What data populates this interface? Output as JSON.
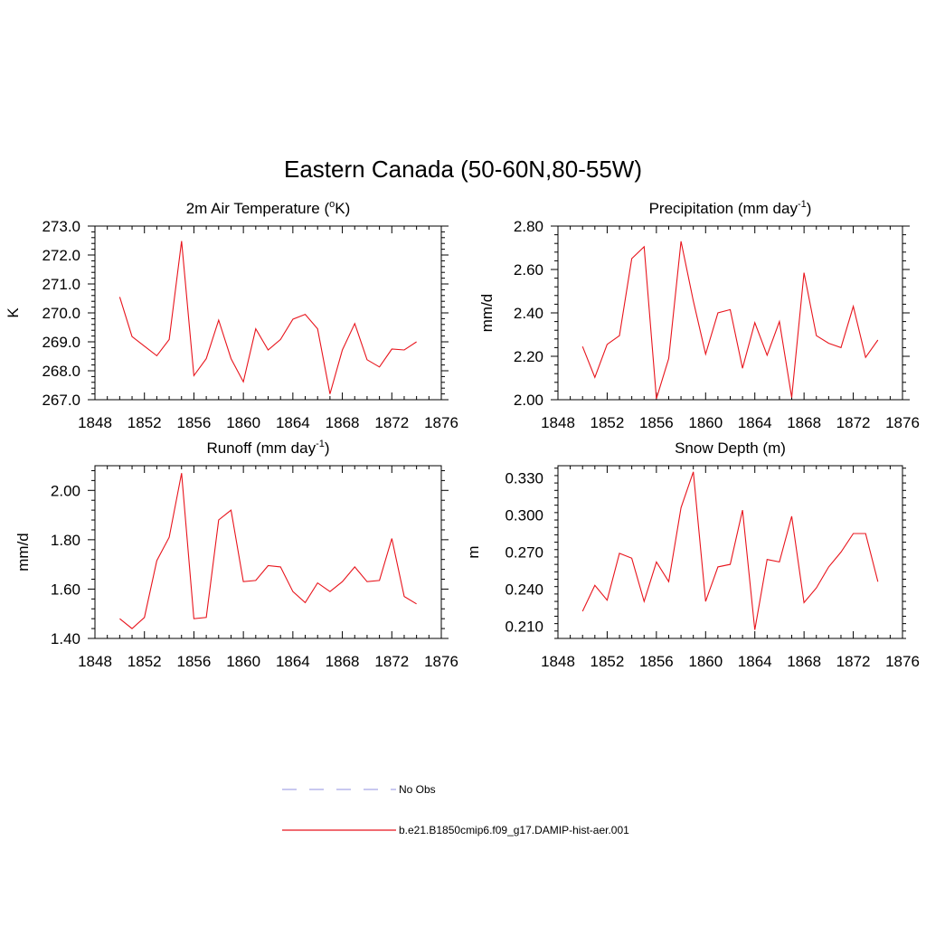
{
  "title": "Eastern Canada (50-60N,80-55W)",
  "colors": {
    "model": "#e8141c",
    "obs": "#a6a6e6",
    "axis": "#000000"
  },
  "legend": {
    "obs_label": "No Obs",
    "model_label": "b.e21.B1850cmip6.f09_g17.DAMIP-hist-aer.001"
  },
  "chart_data": [
    {
      "type": "line",
      "title_main": "2m Air Temperature (",
      "title_sup": "o",
      "title_end": "K)",
      "ylabel": "K",
      "xlim": [
        1848,
        1876
      ],
      "xticks": [
        1848,
        1852,
        1856,
        1860,
        1864,
        1868,
        1872,
        1876
      ],
      "ylim": [
        267.0,
        273.0
      ],
      "yticks": [
        "267.0",
        "268.0",
        "269.0",
        "270.0",
        "271.0",
        "272.0",
        "273.0"
      ],
      "series": [
        {
          "name": "b.e21.B1850cmip6.f09_g17.DAMIP-hist-aer.001",
          "x": [
            1850,
            1851,
            1852,
            1853,
            1854,
            1855,
            1856,
            1857,
            1858,
            1859,
            1860,
            1861,
            1862,
            1863,
            1864,
            1865,
            1866,
            1867,
            1868,
            1869,
            1870,
            1871,
            1872,
            1873,
            1874
          ],
          "y": [
            270.55,
            269.18,
            268.85,
            268.52,
            269.08,
            272.48,
            267.83,
            268.42,
            269.75,
            268.42,
            267.62,
            269.45,
            268.72,
            269.08,
            269.78,
            269.95,
            269.45,
            267.2,
            268.72,
            269.63,
            268.38,
            268.13,
            268.75,
            268.72,
            269.0
          ]
        }
      ]
    },
    {
      "type": "line",
      "title_main": "Precipitation (mm day",
      "title_sup": "-1",
      "title_end": ")",
      "ylabel": "mm/d",
      "xlim": [
        1848,
        1876
      ],
      "xticks": [
        1848,
        1852,
        1856,
        1860,
        1864,
        1868,
        1872,
        1876
      ],
      "ylim": [
        2.0,
        2.8
      ],
      "yticks": [
        "2.00",
        "2.20",
        "2.40",
        "2.60",
        "2.80"
      ],
      "series": [
        {
          "name": "b.e21.B1850cmip6.f09_g17.DAMIP-hist-aer.001",
          "x": [
            1850,
            1851,
            1852,
            1853,
            1854,
            1855,
            1856,
            1857,
            1858,
            1859,
            1860,
            1861,
            1862,
            1863,
            1864,
            1865,
            1866,
            1867,
            1868,
            1869,
            1870,
            1871,
            1872,
            1873,
            1874
          ],
          "y": [
            2.245,
            2.103,
            2.255,
            2.295,
            2.65,
            2.705,
            2.005,
            2.19,
            2.73,
            2.455,
            2.21,
            2.4,
            2.415,
            2.145,
            2.355,
            2.205,
            2.36,
            2.01,
            2.585,
            2.295,
            2.26,
            2.24,
            2.43,
            2.195,
            2.275
          ]
        }
      ]
    },
    {
      "type": "line",
      "title_main": "Runoff (mm day",
      "title_sup": "-1",
      "title_end": ")",
      "ylabel": "mm/d",
      "xlim": [
        1848,
        1876
      ],
      "xticks": [
        1848,
        1852,
        1856,
        1860,
        1864,
        1868,
        1872,
        1876
      ],
      "ylim": [
        1.4,
        2.1
      ],
      "yticks": [
        "1.40",
        "1.60",
        "1.80",
        "2.00"
      ],
      "series": [
        {
          "name": "b.e21.B1850cmip6.f09_g17.DAMIP-hist-aer.001",
          "x": [
            1850,
            1851,
            1852,
            1853,
            1854,
            1855,
            1856,
            1857,
            1858,
            1859,
            1860,
            1861,
            1862,
            1863,
            1864,
            1865,
            1866,
            1867,
            1868,
            1869,
            1870,
            1871,
            1872,
            1873,
            1874
          ],
          "y": [
            1.48,
            1.44,
            1.485,
            1.715,
            1.81,
            2.07,
            1.48,
            1.485,
            1.88,
            1.92,
            1.63,
            1.635,
            1.695,
            1.69,
            1.59,
            1.545,
            1.625,
            1.59,
            1.63,
            1.69,
            1.63,
            1.635,
            1.805,
            1.57,
            1.54
          ]
        }
      ]
    },
    {
      "type": "line",
      "title_main": "Snow Depth (m)",
      "title_sup": "",
      "title_end": "",
      "ylabel": "m",
      "xlim": [
        1848,
        1876
      ],
      "xticks": [
        1848,
        1852,
        1856,
        1860,
        1864,
        1868,
        1872,
        1876
      ],
      "ylim": [
        0.2,
        0.34
      ],
      "yticks": [
        "0.210",
        "0.240",
        "0.270",
        "0.300",
        "0.330"
      ],
      "series": [
        {
          "name": "b.e21.B1850cmip6.f09_g17.DAMIP-hist-aer.001",
          "x": [
            1850,
            1851,
            1852,
            1853,
            1854,
            1855,
            1856,
            1857,
            1858,
            1859,
            1860,
            1861,
            1862,
            1863,
            1864,
            1865,
            1866,
            1867,
            1868,
            1869,
            1870,
            1871,
            1872,
            1873,
            1874
          ],
          "y": [
            0.222,
            0.243,
            0.231,
            0.269,
            0.265,
            0.23,
            0.262,
            0.246,
            0.306,
            0.335,
            0.23,
            0.258,
            0.26,
            0.304,
            0.207,
            0.264,
            0.262,
            0.299,
            0.229,
            0.241,
            0.258,
            0.27,
            0.285,
            0.285,
            0.246
          ]
        }
      ]
    }
  ]
}
